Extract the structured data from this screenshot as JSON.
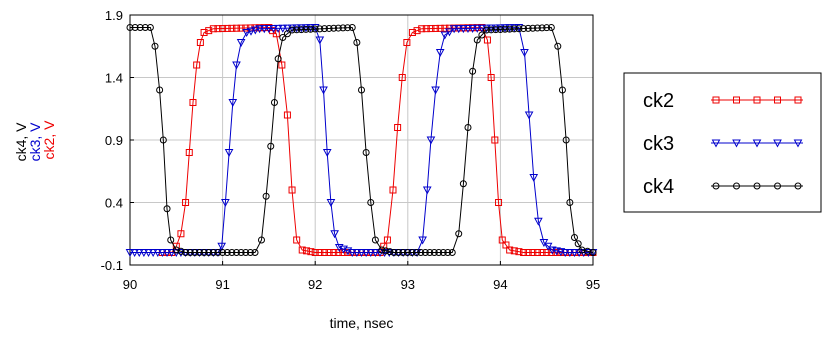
{
  "chart_data": {
    "type": "line",
    "xlabel": "time, nsec",
    "ylabel_parts": [
      {
        "text": "ck4, V",
        "color": "#000000"
      },
      {
        "text": "ck3, V",
        "color": "#0000cc"
      },
      {
        "text": "ck2, V",
        "color": "#ee0000"
      }
    ],
    "xlim": [
      90,
      95
    ],
    "ylim": [
      -0.1,
      1.9
    ],
    "xticks": [
      90,
      91,
      92,
      93,
      94,
      95
    ],
    "yticks": [
      -0.1,
      0.4,
      0.9,
      1.4,
      1.9
    ],
    "grid": true,
    "legend_position": "right",
    "series": [
      {
        "name": "ck2",
        "color": "#ee0000",
        "marker": "square",
        "transitions": [
          {
            "x": 90.35,
            "y": 0.0
          },
          {
            "x": 90.45,
            "y": 0.0
          },
          {
            "x": 90.5,
            "y": 0.05
          },
          {
            "x": 90.55,
            "y": 0.15
          },
          {
            "x": 90.6,
            "y": 0.4
          },
          {
            "x": 90.64,
            "y": 0.8
          },
          {
            "x": 90.68,
            "y": 1.2
          },
          {
            "x": 90.72,
            "y": 1.5
          },
          {
            "x": 90.76,
            "y": 1.68
          },
          {
            "x": 90.8,
            "y": 1.76
          },
          {
            "x": 90.9,
            "y": 1.79
          },
          {
            "x": 91.5,
            "y": 1.8
          },
          {
            "x": 91.58,
            "y": 1.75
          },
          {
            "x": 91.64,
            "y": 1.5
          },
          {
            "x": 91.7,
            "y": 1.1
          },
          {
            "x": 91.75,
            "y": 0.5
          },
          {
            "x": 91.8,
            "y": 0.1
          },
          {
            "x": 91.86,
            "y": 0.02
          },
          {
            "x": 92.0,
            "y": 0.0
          },
          {
            "x": 92.7,
            "y": 0.0
          },
          {
            "x": 92.78,
            "y": 0.1
          },
          {
            "x": 92.84,
            "y": 0.5
          },
          {
            "x": 92.89,
            "y": 1.0
          },
          {
            "x": 92.94,
            "y": 1.4
          },
          {
            "x": 92.99,
            "y": 1.68
          },
          {
            "x": 93.05,
            "y": 1.76
          },
          {
            "x": 93.15,
            "y": 1.79
          },
          {
            "x": 93.8,
            "y": 1.8
          },
          {
            "x": 93.86,
            "y": 1.7
          },
          {
            "x": 93.9,
            "y": 1.4
          },
          {
            "x": 93.94,
            "y": 0.9
          },
          {
            "x": 93.98,
            "y": 0.4
          },
          {
            "x": 94.02,
            "y": 0.1
          },
          {
            "x": 94.1,
            "y": 0.02
          },
          {
            "x": 94.25,
            "y": 0.0
          },
          {
            "x": 95.0,
            "y": 0.0
          }
        ]
      },
      {
        "name": "ck3",
        "color": "#0000cc",
        "marker": "triangle-down",
        "transitions": [
          {
            "x": 90.0,
            "y": 0.0
          },
          {
            "x": 90.95,
            "y": 0.0
          },
          {
            "x": 90.99,
            "y": 0.05
          },
          {
            "x": 91.03,
            "y": 0.4
          },
          {
            "x": 91.07,
            "y": 0.8
          },
          {
            "x": 91.11,
            "y": 1.2
          },
          {
            "x": 91.15,
            "y": 1.5
          },
          {
            "x": 91.2,
            "y": 1.68
          },
          {
            "x": 91.26,
            "y": 1.76
          },
          {
            "x": 91.4,
            "y": 1.79
          },
          {
            "x": 92.0,
            "y": 1.8
          },
          {
            "x": 92.05,
            "y": 1.7
          },
          {
            "x": 92.09,
            "y": 1.3
          },
          {
            "x": 92.13,
            "y": 0.8
          },
          {
            "x": 92.17,
            "y": 0.4
          },
          {
            "x": 92.21,
            "y": 0.15
          },
          {
            "x": 92.26,
            "y": 0.04
          },
          {
            "x": 92.4,
            "y": 0.0
          },
          {
            "x": 93.1,
            "y": 0.0
          },
          {
            "x": 93.16,
            "y": 0.1
          },
          {
            "x": 93.21,
            "y": 0.5
          },
          {
            "x": 93.25,
            "y": 0.9
          },
          {
            "x": 93.3,
            "y": 1.3
          },
          {
            "x": 93.35,
            "y": 1.6
          },
          {
            "x": 93.4,
            "y": 1.74
          },
          {
            "x": 93.5,
            "y": 1.79
          },
          {
            "x": 94.2,
            "y": 1.8
          },
          {
            "x": 94.26,
            "y": 1.6
          },
          {
            "x": 94.31,
            "y": 1.1
          },
          {
            "x": 94.36,
            "y": 0.6
          },
          {
            "x": 94.41,
            "y": 0.25
          },
          {
            "x": 94.47,
            "y": 0.08
          },
          {
            "x": 94.56,
            "y": 0.02
          },
          {
            "x": 94.7,
            "y": 0.0
          },
          {
            "x": 95.0,
            "y": 0.0
          }
        ]
      },
      {
        "name": "ck4",
        "color": "#000000",
        "marker": "circle",
        "transitions": [
          {
            "x": 90.0,
            "y": 1.8
          },
          {
            "x": 90.22,
            "y": 1.8
          },
          {
            "x": 90.27,
            "y": 1.65
          },
          {
            "x": 90.32,
            "y": 1.3
          },
          {
            "x": 90.36,
            "y": 0.9
          },
          {
            "x": 90.4,
            "y": 0.35
          },
          {
            "x": 90.44,
            "y": 0.1
          },
          {
            "x": 90.5,
            "y": 0.02
          },
          {
            "x": 90.6,
            "y": 0.0
          },
          {
            "x": 91.35,
            "y": 0.0
          },
          {
            "x": 91.42,
            "y": 0.1
          },
          {
            "x": 91.47,
            "y": 0.45
          },
          {
            "x": 91.52,
            "y": 0.85
          },
          {
            "x": 91.56,
            "y": 1.2
          },
          {
            "x": 91.6,
            "y": 1.55
          },
          {
            "x": 91.65,
            "y": 1.72
          },
          {
            "x": 91.75,
            "y": 1.78
          },
          {
            "x": 92.4,
            "y": 1.8
          },
          {
            "x": 92.45,
            "y": 1.68
          },
          {
            "x": 92.5,
            "y": 1.3
          },
          {
            "x": 92.55,
            "y": 0.8
          },
          {
            "x": 92.6,
            "y": 0.4
          },
          {
            "x": 92.65,
            "y": 0.1
          },
          {
            "x": 92.72,
            "y": 0.02
          },
          {
            "x": 92.85,
            "y": 0.0
          },
          {
            "x": 93.48,
            "y": 0.0
          },
          {
            "x": 93.55,
            "y": 0.15
          },
          {
            "x": 93.6,
            "y": 0.55
          },
          {
            "x": 93.65,
            "y": 1.0
          },
          {
            "x": 93.7,
            "y": 1.45
          },
          {
            "x": 93.75,
            "y": 1.7
          },
          {
            "x": 93.85,
            "y": 1.78
          },
          {
            "x": 94.55,
            "y": 1.8
          },
          {
            "x": 94.62,
            "y": 1.65
          },
          {
            "x": 94.67,
            "y": 1.3
          },
          {
            "x": 94.71,
            "y": 0.9
          },
          {
            "x": 94.75,
            "y": 0.4
          },
          {
            "x": 94.8,
            "y": 0.12
          },
          {
            "x": 94.88,
            "y": 0.02
          },
          {
            "x": 95.0,
            "y": 0.0
          }
        ]
      }
    ]
  }
}
